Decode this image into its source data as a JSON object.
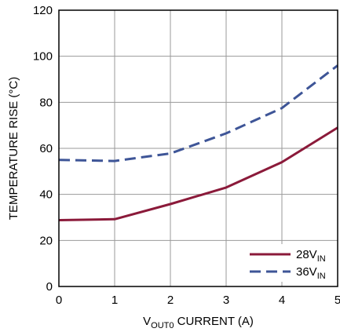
{
  "chart_data": {
    "type": "line",
    "x_axis": {
      "label_main": "V",
      "label_sub": "OUT0",
      "label_rest": " CURRENT (A)",
      "ticks": [
        0,
        1,
        2,
        3,
        4,
        5
      ],
      "range": [
        0,
        5
      ]
    },
    "y_axis": {
      "label": "TEMPERATURE RISE (°C)",
      "ticks": [
        0,
        20,
        40,
        60,
        80,
        100,
        120
      ],
      "range": [
        0,
        120
      ]
    },
    "grid": true,
    "legend_position": "bottom-right",
    "series": [
      {
        "name": "28V",
        "name_sub": "IN",
        "color": "#8b1a3a",
        "style": "solid",
        "x": [
          0,
          1,
          2,
          3,
          4,
          5
        ],
        "y": [
          28.8,
          29.2,
          35.8,
          43.0,
          54.0,
          69.0
        ]
      },
      {
        "name": "36V",
        "name_sub": "IN",
        "color": "#3e5597",
        "style": "dashed",
        "x": [
          0,
          1,
          2,
          3,
          4,
          5
        ],
        "y": [
          55.0,
          54.5,
          57.8,
          66.5,
          77.5,
          96.0
        ]
      }
    ]
  }
}
